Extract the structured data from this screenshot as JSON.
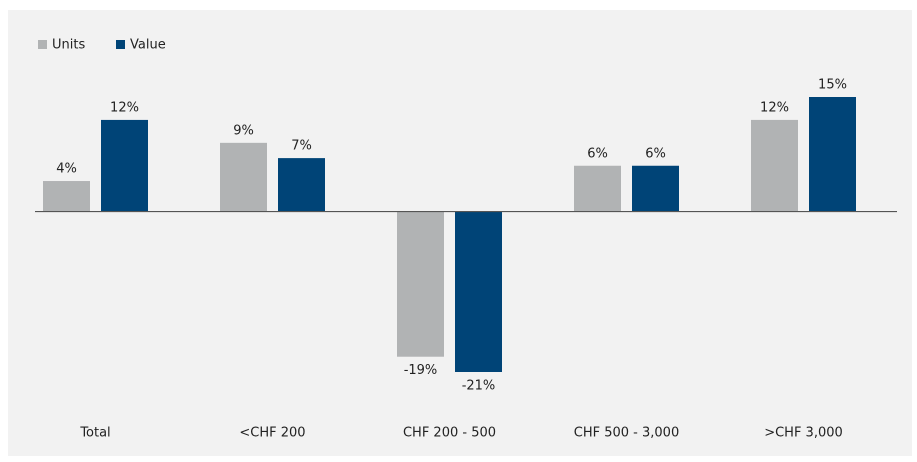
{
  "chart_data": {
    "type": "bar",
    "categories": [
      "Total",
      "<CHF 200",
      "CHF 200 - 500",
      "CHF 500 - 3,000",
      ">CHF 3,000"
    ],
    "series": [
      {
        "name": "Units",
        "color": "#b1b3b4",
        "values": [
          4,
          9,
          -19,
          6,
          12
        ],
        "value_labels": [
          "4%",
          "9%",
          "-19%",
          "6%",
          "12%"
        ]
      },
      {
        "name": "Value",
        "color": "#004477",
        "values": [
          12,
          7,
          -21,
          6,
          15
        ],
        "value_labels": [
          "12%",
          "7%",
          "-21%",
          "6%",
          "15%"
        ]
      }
    ],
    "legend": "top-left"
  }
}
